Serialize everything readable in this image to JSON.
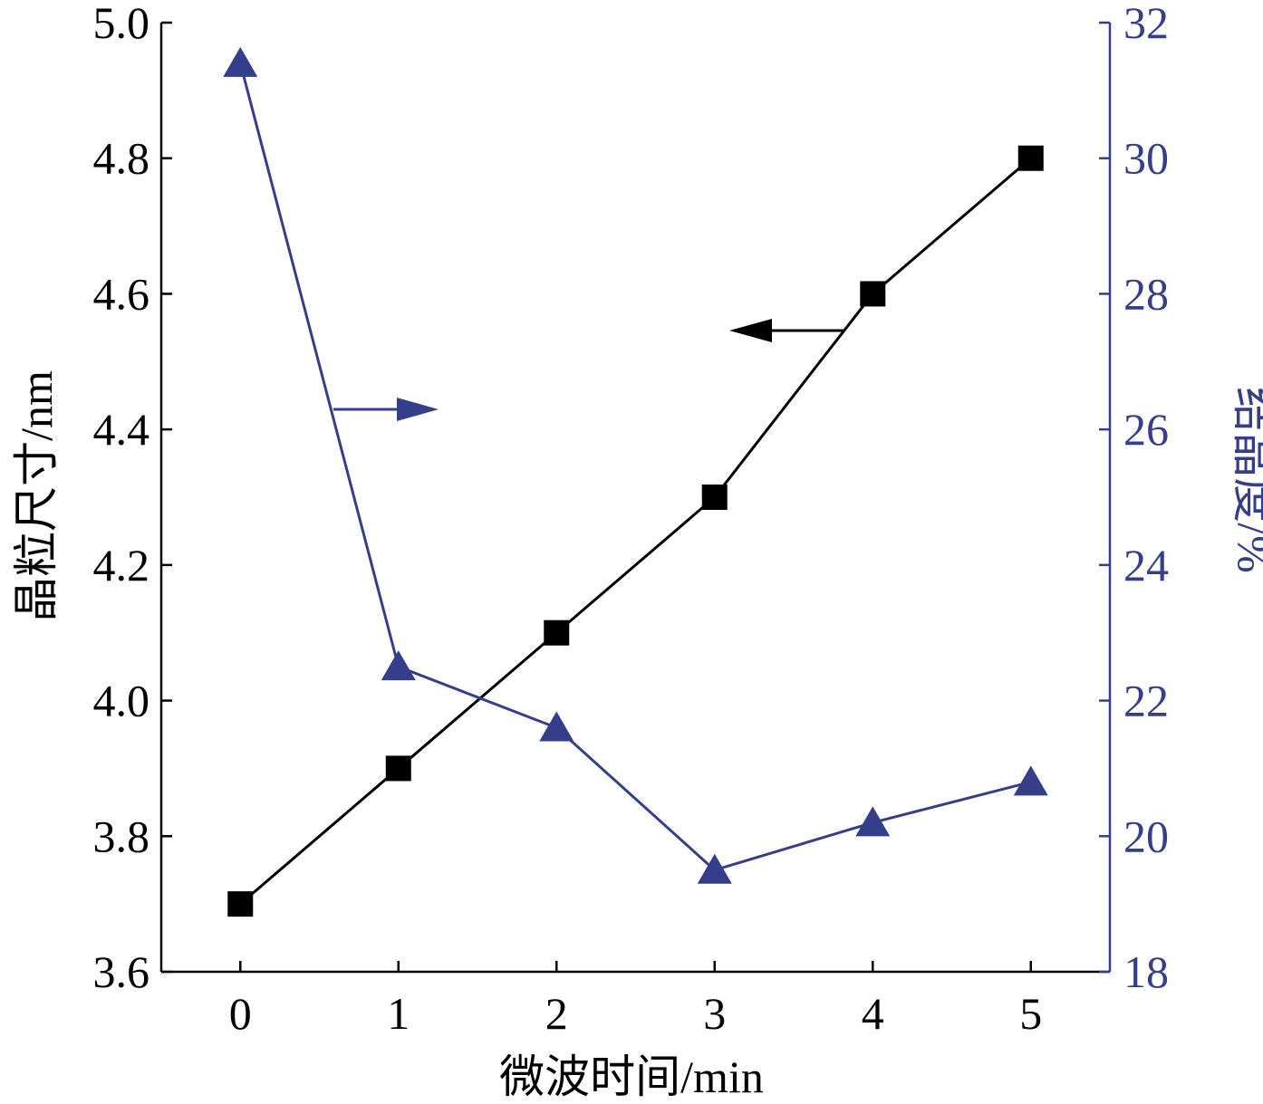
{
  "chart_data": {
    "type": "line",
    "xlabel": "微波时间/min",
    "ylabel_left": "晶粒尺寸/nm",
    "ylabel_right": "结晶度/%",
    "x": [
      0,
      1,
      2,
      3,
      4,
      5
    ],
    "xlim": [
      -0.5,
      5.5
    ],
    "ylim_left": [
      3.6,
      5.0
    ],
    "ylim_right": [
      18,
      32
    ],
    "x_ticks": [
      "0",
      "1",
      "2",
      "3",
      "4",
      "5"
    ],
    "y_left_ticks": [
      "3.6",
      "3.8",
      "4.0",
      "4.2",
      "4.4",
      "4.6",
      "4.8",
      "5.0"
    ],
    "y_right_ticks": [
      "18",
      "20",
      "22",
      "24",
      "26",
      "28",
      "30",
      "32"
    ],
    "grid": false,
    "series": [
      {
        "axis": "left",
        "marker": "square",
        "color": "#000000",
        "values": [
          3.7,
          3.9,
          4.1,
          4.3,
          4.6,
          4.8
        ]
      },
      {
        "axis": "right",
        "marker": "triangle",
        "color": "#353e8a",
        "values": [
          31.4,
          22.5,
          21.6,
          19.5,
          20.2,
          20.8
        ]
      }
    ],
    "annotations": [
      {
        "type": "arrow",
        "direction": "left",
        "series": 0,
        "meaning": "points to left axis"
      },
      {
        "type": "arrow",
        "direction": "right",
        "series": 1,
        "meaning": "points to right axis"
      }
    ]
  }
}
